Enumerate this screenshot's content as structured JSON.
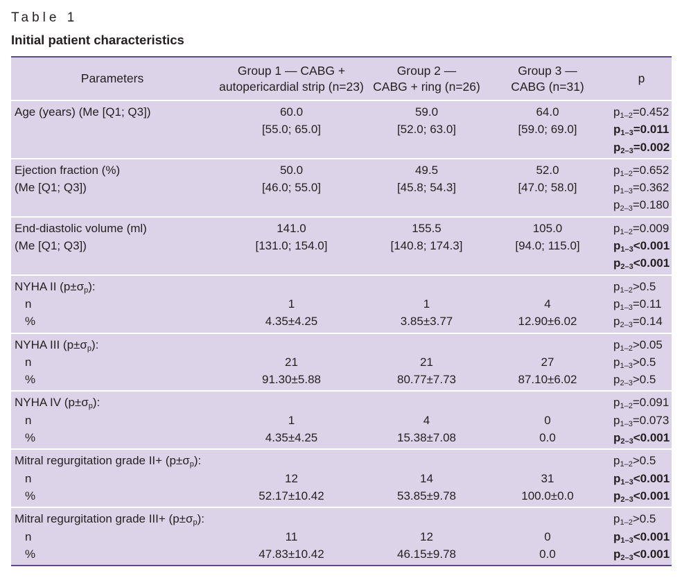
{
  "caption": "Table 1",
  "title": "Initial patient characteristics",
  "headers": {
    "params": "Parameters",
    "g1_l1": "Group 1 — CABG +",
    "g1_l2": "autopericardial strip (n=23)",
    "g2_l1": "Group 2 —",
    "g2_l2": "CABG + ring (n=26)",
    "g3_l1": "Group 3 —",
    "g3_l2": "CABG (n=31)",
    "p": "p"
  },
  "rows": [
    {
      "param": [
        "Age (years) (Me [Q1; Q3])",
        ""
      ],
      "g1": [
        "60.0",
        "[55.0; 65.0]"
      ],
      "g2": [
        "59.0",
        "[52.0; 63.0]"
      ],
      "g3": [
        "64.0",
        "[59.0; 69.0]"
      ],
      "p": [
        {
          "sub": "1–2",
          "val": "=0.452",
          "bold": false
        },
        {
          "sub": "1–3",
          "val": "=0.011",
          "bold": true
        },
        {
          "sub": "2–3",
          "val": "=0.002",
          "bold": true
        }
      ]
    },
    {
      "param": [
        "Ejection fraction (%)",
        "(Me [Q1; Q3])"
      ],
      "g1": [
        "50.0",
        "[46.0; 55.0]"
      ],
      "g2": [
        "49.5",
        "[45.8; 54.3]"
      ],
      "g3": [
        "52.0",
        "[47.0; 58.0]"
      ],
      "p": [
        {
          "sub": "1–2",
          "val": "=0.652",
          "bold": false
        },
        {
          "sub": "1–3",
          "val": "=0.362",
          "bold": false
        },
        {
          "sub": "2–3",
          "val": "=0.180",
          "bold": false
        }
      ]
    },
    {
      "param": [
        "End-diastolic volume (ml)",
        "(Me [Q1; Q3])"
      ],
      "g1": [
        "141.0",
        "[131.0; 154.0]"
      ],
      "g2": [
        "155.5",
        "[140.8; 174.3]"
      ],
      "g3": [
        "105.0",
        "[94.0; 115.0]"
      ],
      "p": [
        {
          "sub": "1–2",
          "val": "=0.009",
          "bold": false
        },
        {
          "sub": "1–3",
          "val": "<0.001",
          "bold": true
        },
        {
          "sub": "2–3",
          "val": "<0.001",
          "bold": true
        }
      ]
    },
    {
      "param": [
        "NYHA II (p±σ",
        "p",
        "):"
      ],
      "n": "n",
      "pct": "%",
      "g1": [
        "1",
        "4.35±4.25"
      ],
      "g2": [
        "1",
        "3.85±3.77"
      ],
      "g3": [
        "4",
        "12.90±6.02"
      ],
      "p": [
        {
          "sub": "1–2",
          "val": ">0.5",
          "bold": false
        },
        {
          "sub": "1–3",
          "val": "=0.11",
          "bold": false
        },
        {
          "sub": "2–3",
          "val": "=0.14",
          "bold": false
        }
      ]
    },
    {
      "param": [
        "NYHA III (p±σ",
        "p",
        ")："
      ],
      "n": "n",
      "pct": "%",
      "g1": [
        "21",
        "91.30±5.88"
      ],
      "g2": [
        "21",
        "80.77±7.73"
      ],
      "g3": [
        "27",
        "87.10±6.02"
      ],
      "p": [
        {
          "sub": "1–2",
          "val": ">0.05",
          "bold": false
        },
        {
          "sub": "1–3",
          "val": ">0.5",
          "bold": false
        },
        {
          "sub": "2–3",
          "val": ">0.5",
          "bold": false
        }
      ]
    },
    {
      "param": [
        "NYHA IV (p±σ",
        "p",
        "):"
      ],
      "n": "n",
      "pct": "%",
      "g1": [
        "1",
        "4.35±4.25"
      ],
      "g2": [
        "4",
        "15.38±7.08"
      ],
      "g3": [
        "0",
        "0.0"
      ],
      "p": [
        {
          "sub": "1–2",
          "val": "=0.091",
          "bold": false
        },
        {
          "sub": "1–3",
          "val": "=0.073",
          "bold": false
        },
        {
          "sub": "2–3",
          "val": "<0.001",
          "bold": true
        }
      ]
    },
    {
      "param": [
        "Mitral regurgitation grade II+ (p±σ",
        "p",
        "):"
      ],
      "n": "n",
      "pct": "%",
      "g1": [
        "12",
        "52.17±10.42"
      ],
      "g2": [
        "14",
        "53.85±9.78"
      ],
      "g3": [
        "31",
        "100.0±0.0"
      ],
      "p": [
        {
          "sub": "1–2",
          "val": ">0.5",
          "bold": false
        },
        {
          "sub": "1–3",
          "val": "<0.001",
          "bold": true
        },
        {
          "sub": "2–3",
          "val": "<0.001",
          "bold": true
        }
      ]
    },
    {
      "param": [
        "Mitral regurgitation grade III+ (p±σ",
        "p",
        "):"
      ],
      "n": "n",
      "pct": "%",
      "g1": [
        "11",
        "47.83±10.42"
      ],
      "g2": [
        "12",
        "46.15±9.78"
      ],
      "g3": [
        "0",
        "0.0"
      ],
      "p": [
        {
          "sub": "1–2",
          "val": ">0.5",
          "bold": false
        },
        {
          "sub": "1–3",
          "val": "<0.001",
          "bold": true
        },
        {
          "sub": "2–3",
          "val": "<0.001",
          "bold": true
        }
      ]
    }
  ]
}
